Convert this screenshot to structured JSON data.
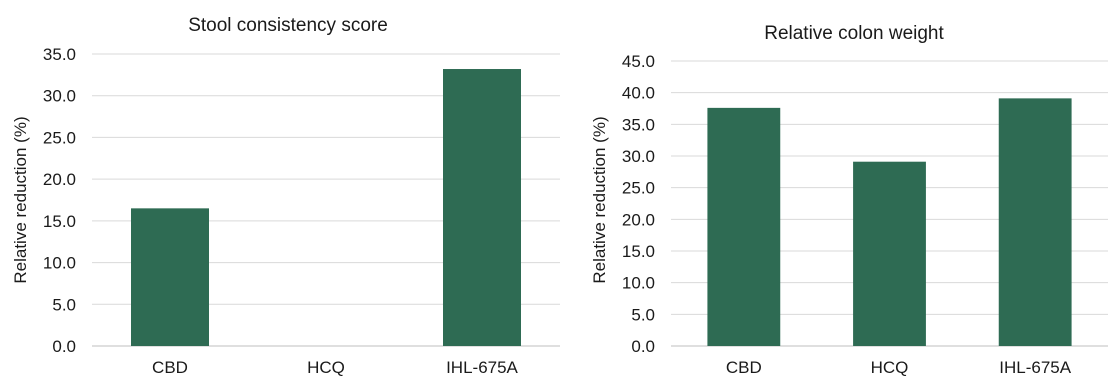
{
  "chart_data": [
    {
      "type": "bar",
      "title": "Stool consistency score",
      "xlabel": "",
      "ylabel": "Relative reduction (%)",
      "categories": [
        "CBD",
        "HCQ",
        "IHL-675A"
      ],
      "values": [
        16.5,
        0,
        33.2
      ],
      "yticks": [
        "0.0",
        "5.0",
        "10.0",
        "15.0",
        "20.0",
        "25.0",
        "30.0",
        "35.0"
      ],
      "ylim": [
        0,
        35
      ],
      "grid": true,
      "bar_color": "#2e6b53"
    },
    {
      "type": "bar",
      "title": "Relative colon weight",
      "xlabel": "",
      "ylabel": "Relative reduction (%)",
      "categories": [
        "CBD",
        "HCQ",
        "IHL-675A"
      ],
      "values": [
        37.6,
        29.1,
        39.1
      ],
      "yticks": [
        "0.0",
        "5.0",
        "10.0",
        "15.0",
        "20.0",
        "25.0",
        "30.0",
        "35.0",
        "40.0",
        "45.0"
      ],
      "ylim": [
        0,
        45
      ],
      "grid": true,
      "bar_color": "#2e6b53"
    }
  ]
}
